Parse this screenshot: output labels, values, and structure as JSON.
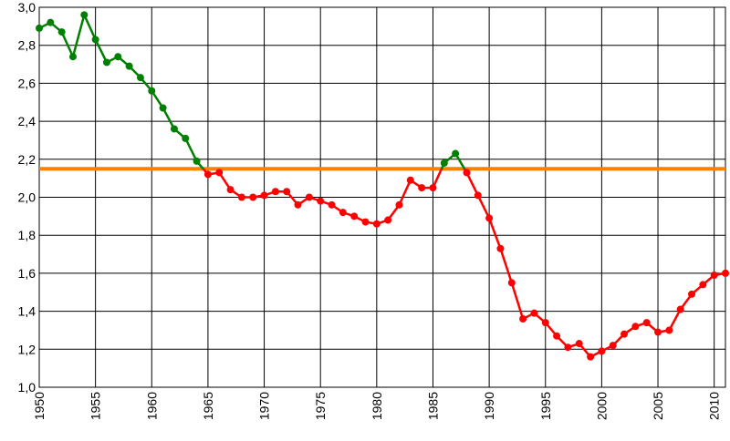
{
  "chart_data": {
    "type": "line",
    "x": [
      1950,
      1951,
      1952,
      1953,
      1954,
      1955,
      1956,
      1957,
      1958,
      1959,
      1960,
      1961,
      1962,
      1963,
      1964,
      1965,
      1966,
      1967,
      1968,
      1969,
      1970,
      1971,
      1972,
      1973,
      1974,
      1975,
      1976,
      1977,
      1978,
      1979,
      1980,
      1981,
      1982,
      1983,
      1984,
      1985,
      1986,
      1987,
      1988,
      1989,
      1990,
      1991,
      1992,
      1993,
      1994,
      1995,
      1996,
      1997,
      1998,
      1999,
      2000,
      2001,
      2002,
      2003,
      2004,
      2005,
      2006,
      2007,
      2008,
      2009,
      2010,
      2011
    ],
    "values": [
      2.89,
      2.92,
      2.87,
      2.74,
      2.96,
      2.83,
      2.71,
      2.74,
      2.69,
      2.63,
      2.56,
      2.47,
      2.36,
      2.31,
      2.19,
      2.12,
      2.13,
      2.04,
      2.0,
      2.0,
      2.01,
      2.03,
      2.03,
      1.96,
      2.0,
      1.98,
      1.96,
      1.92,
      1.9,
      1.87,
      1.86,
      1.88,
      1.96,
      2.09,
      2.05,
      2.05,
      2.18,
      2.23,
      2.13,
      2.01,
      1.89,
      1.73,
      1.55,
      1.36,
      1.39,
      1.34,
      1.27,
      1.21,
      1.23,
      1.16,
      1.19,
      1.22,
      1.28,
      1.32,
      1.34,
      1.29,
      1.3,
      1.41,
      1.49,
      1.54,
      1.59,
      1.6
    ],
    "color_above": "#008000",
    "color_below": "#ff0000",
    "reference_line": {
      "value": 2.15,
      "color": "#ff8000"
    },
    "xlim": [
      1950,
      2011
    ],
    "ylim": [
      1.0,
      3.0
    ],
    "xticks": [
      1950,
      1955,
      1960,
      1965,
      1970,
      1975,
      1980,
      1985,
      1990,
      1995,
      2000,
      2005,
      2010
    ],
    "yticks": [
      {
        "value": 1.0,
        "label": "1,0"
      },
      {
        "value": 1.2,
        "label": "1,2"
      },
      {
        "value": 1.4,
        "label": "1,4"
      },
      {
        "value": 1.6,
        "label": "1,6"
      },
      {
        "value": 1.8,
        "label": "1,8"
      },
      {
        "value": 2.0,
        "label": "2,0"
      },
      {
        "value": 2.2,
        "label": "2,2"
      },
      {
        "value": 2.4,
        "label": "2,4"
      },
      {
        "value": 2.6,
        "label": "2,6"
      },
      {
        "value": 2.8,
        "label": "2,8"
      },
      {
        "value": 3.0,
        "label": "3,0"
      }
    ],
    "grid": true
  }
}
